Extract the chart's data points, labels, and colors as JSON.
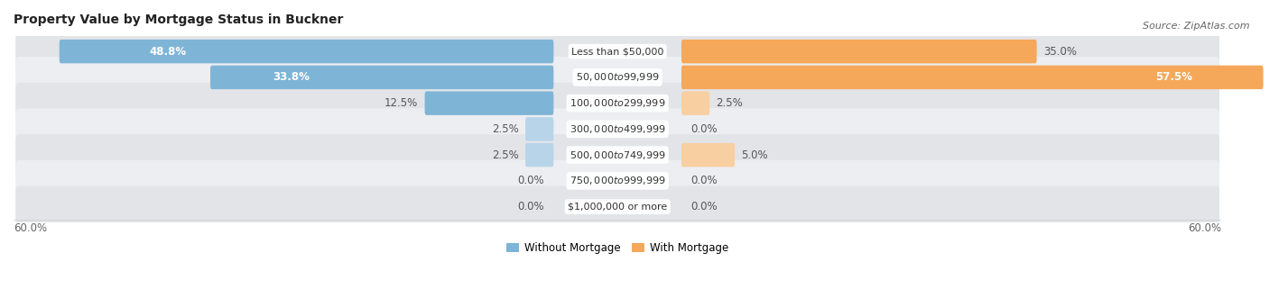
{
  "title": "Property Value by Mortgage Status in Buckner",
  "source": "Source: ZipAtlas.com",
  "categories": [
    "Less than $50,000",
    "$50,000 to $99,999",
    "$100,000 to $299,999",
    "$300,000 to $499,999",
    "$500,000 to $749,999",
    "$750,000 to $999,999",
    "$1,000,000 or more"
  ],
  "without_mortgage": [
    48.8,
    33.8,
    12.5,
    2.5,
    2.5,
    0.0,
    0.0
  ],
  "with_mortgage": [
    35.0,
    57.5,
    2.5,
    0.0,
    5.0,
    0.0,
    0.0
  ],
  "color_without": "#7eb5d6",
  "color_with": "#f5a85a",
  "color_without_light": "#b8d4e8",
  "color_with_light": "#f8cfa0",
  "bar_height": 0.62,
  "xlim": 60.0,
  "bg_colors": [
    "#e8eaed",
    "#f0f1f3"
  ],
  "title_fontsize": 10,
  "source_fontsize": 8,
  "label_fontsize": 8.5,
  "category_fontsize": 8,
  "legend_fontsize": 8.5,
  "bottom_label": "60.0%"
}
